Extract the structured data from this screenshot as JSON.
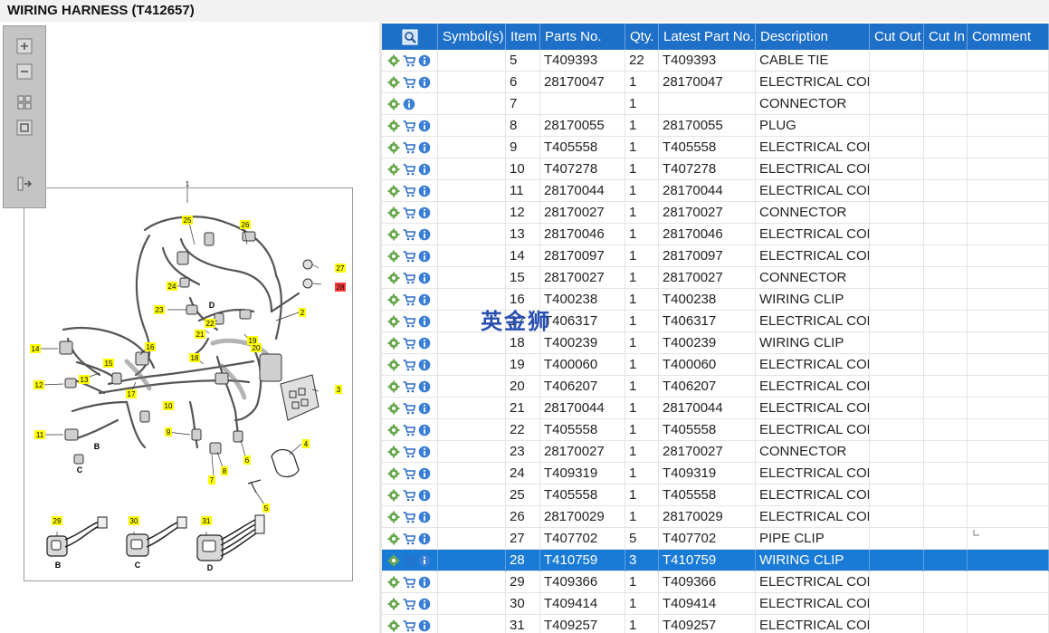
{
  "window": {
    "title": "WIRING HARNESS (T412657)"
  },
  "watermark": "英金狮",
  "drawing": {
    "callouts": [
      "1",
      "2",
      "3",
      "4",
      "5",
      "6",
      "7",
      "8",
      "9",
      "10",
      "11",
      "12",
      "13",
      "14",
      "15",
      "16",
      "17",
      "18",
      "19",
      "20",
      "21",
      "22",
      "23",
      "24",
      "25",
      "26",
      "27",
      "28",
      "29",
      "30",
      "31"
    ],
    "letters": [
      "B",
      "C",
      "D"
    ],
    "highlighted_callout": "28"
  },
  "toolbar": {
    "zoom_in": "zoom-in",
    "zoom_out": "zoom-out",
    "fit": "fit-to-window",
    "actual": "actual-size",
    "collapse": "collapse-panel"
  },
  "colors": {
    "header": "#1e6fc8",
    "selected": "#1a7bd6",
    "callout": "#ffff00",
    "callout_active": "#ff3b3b"
  },
  "table": {
    "headers": [
      "",
      "Symbol(s)",
      "Item",
      "Parts No.",
      "Qty.",
      "Latest Part No.",
      "Description",
      "Cut Out",
      "Cut In",
      "Comment"
    ],
    "rows": [
      {
        "cart": true,
        "item": "5",
        "part": "T409393",
        "qty": "22",
        "latest": "T409393",
        "desc": "CABLE TIE"
      },
      {
        "cart": true,
        "item": "6",
        "part": "28170047",
        "qty": "1",
        "latest": "28170047",
        "desc": "ELECTRICAL CONN"
      },
      {
        "cart": false,
        "item": "7",
        "part": "",
        "qty": "1",
        "latest": "",
        "desc": "CONNECTOR"
      },
      {
        "cart": true,
        "item": "8",
        "part": "28170055",
        "qty": "1",
        "latest": "28170055",
        "desc": "PLUG"
      },
      {
        "cart": true,
        "item": "9",
        "part": "T405558",
        "qty": "1",
        "latest": "T405558",
        "desc": "ELECTRICAL CONN"
      },
      {
        "cart": true,
        "item": "10",
        "part": "T407278",
        "qty": "1",
        "latest": "T407278",
        "desc": "ELECTRICAL CONN"
      },
      {
        "cart": true,
        "item": "11",
        "part": "28170044",
        "qty": "1",
        "latest": "28170044",
        "desc": "ELECTRICAL CONN"
      },
      {
        "cart": true,
        "item": "12",
        "part": "28170027",
        "qty": "1",
        "latest": "28170027",
        "desc": "CONNECTOR"
      },
      {
        "cart": true,
        "item": "13",
        "part": "28170046",
        "qty": "1",
        "latest": "28170046",
        "desc": "ELECTRICAL CONN"
      },
      {
        "cart": true,
        "item": "14",
        "part": "28170097",
        "qty": "1",
        "latest": "28170097",
        "desc": "ELECTRICAL CONN"
      },
      {
        "cart": true,
        "item": "15",
        "part": "28170027",
        "qty": "1",
        "latest": "28170027",
        "desc": "CONNECTOR"
      },
      {
        "cart": true,
        "item": "16",
        "part": "T400238",
        "qty": "1",
        "latest": "T400238",
        "desc": "WIRING CLIP"
      },
      {
        "cart": true,
        "item": "17",
        "part": "T406317",
        "qty": "1",
        "latest": "T406317",
        "desc": "ELECTRICAL CONN"
      },
      {
        "cart": true,
        "item": "18",
        "part": "T400239",
        "qty": "1",
        "latest": "T400239",
        "desc": "WIRING CLIP"
      },
      {
        "cart": true,
        "item": "19",
        "part": "T400060",
        "qty": "1",
        "latest": "T400060",
        "desc": "ELECTRICAL CONN"
      },
      {
        "cart": true,
        "item": "20",
        "part": "T406207",
        "qty": "1",
        "latest": "T406207",
        "desc": "ELECTRICAL CONN"
      },
      {
        "cart": true,
        "item": "21",
        "part": "28170044",
        "qty": "1",
        "latest": "28170044",
        "desc": "ELECTRICAL CONN"
      },
      {
        "cart": true,
        "item": "22",
        "part": "T405558",
        "qty": "1",
        "latest": "T405558",
        "desc": "ELECTRICAL CONN"
      },
      {
        "cart": true,
        "item": "23",
        "part": "28170027",
        "qty": "1",
        "latest": "28170027",
        "desc": "CONNECTOR"
      },
      {
        "cart": true,
        "item": "24",
        "part": "T409319",
        "qty": "1",
        "latest": "T409319",
        "desc": "ELECTRICAL CONN"
      },
      {
        "cart": true,
        "item": "25",
        "part": "T405558",
        "qty": "1",
        "latest": "T405558",
        "desc": "ELECTRICAL CONN"
      },
      {
        "cart": true,
        "item": "26",
        "part": "28170029",
        "qty": "1",
        "latest": "28170029",
        "desc": "ELECTRICAL CONN"
      },
      {
        "cart": true,
        "item": "27",
        "part": "T407702",
        "qty": "5",
        "latest": "T407702",
        "desc": "PIPE CLIP"
      },
      {
        "cart": true,
        "item": "28",
        "part": "T410759",
        "qty": "3",
        "latest": "T410759",
        "desc": "WIRING CLIP",
        "selected": true
      },
      {
        "cart": true,
        "item": "29",
        "part": "T409366",
        "qty": "1",
        "latest": "T409366",
        "desc": "ELECTRICAL CONN"
      },
      {
        "cart": true,
        "item": "30",
        "part": "T409414",
        "qty": "1",
        "latest": "T409414",
        "desc": "ELECTRICAL CONN"
      },
      {
        "cart": true,
        "item": "31",
        "part": "T409257",
        "qty": "1",
        "latest": "T409257",
        "desc": "ELECTRICAL CONN"
      }
    ]
  }
}
